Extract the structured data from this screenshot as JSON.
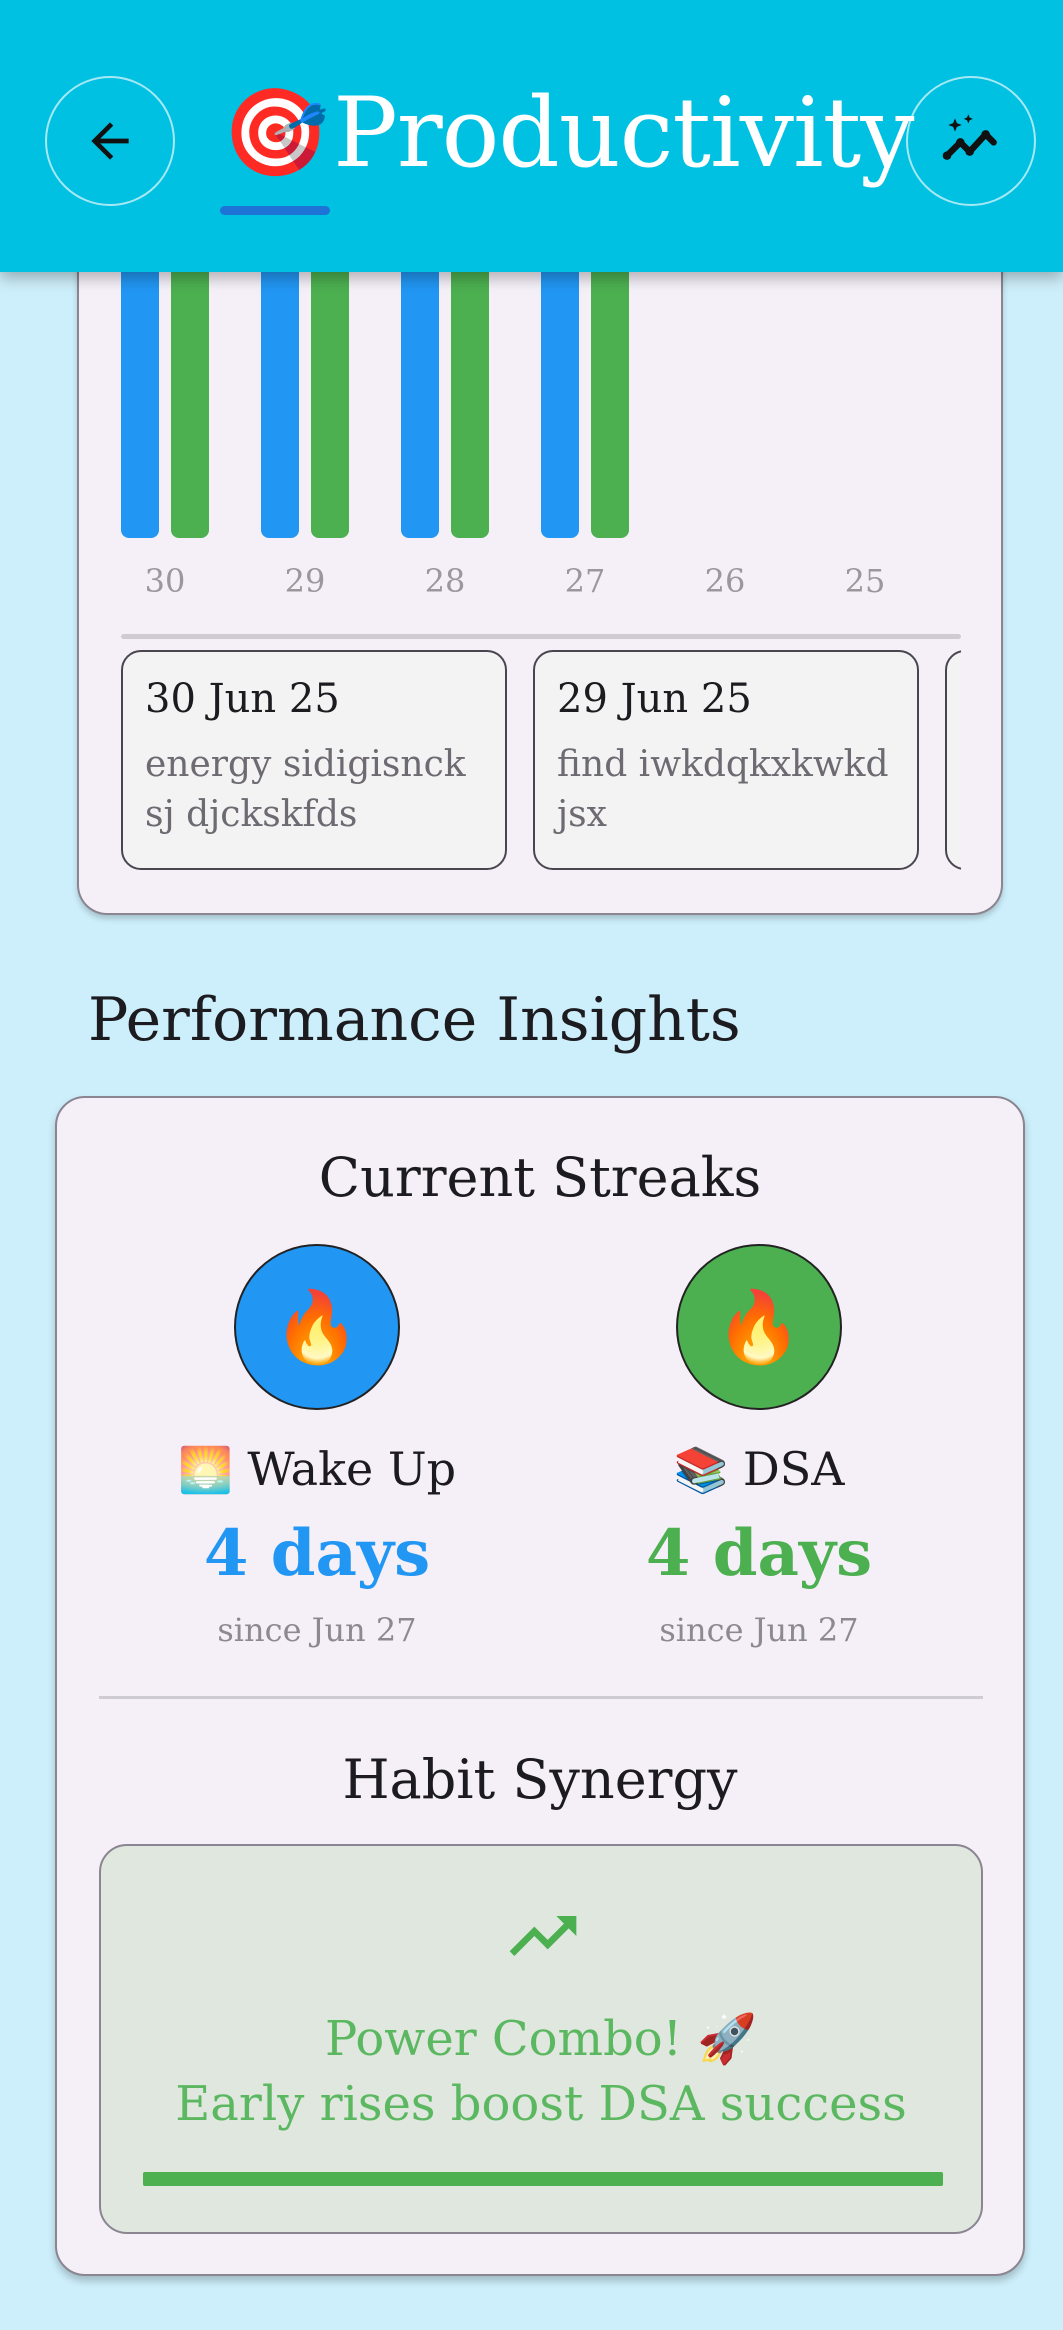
{
  "header": {
    "title_emoji": "🎯",
    "title": "Productivity",
    "back_icon": "arrow-left-icon",
    "insights_icon": "sparkle-chart-icon"
  },
  "chart": {
    "chart_data": {
      "type": "bar",
      "categories": [
        "30",
        "29",
        "28",
        "27",
        "26",
        "25"
      ],
      "series": [
        {
          "color": "#2196f3",
          "has_data": [
            true,
            true,
            true,
            true,
            false,
            false
          ]
        },
        {
          "color": "#4caf50",
          "has_data": [
            true,
            true,
            true,
            true,
            false,
            false
          ]
        }
      ]
    },
    "notes": [
      {
        "date": "30 Jun 25",
        "text": "energy sidigisncksj djckskfds"
      },
      {
        "date": "29 Jun 25",
        "text": "find iwkdqkxkwkdjsx"
      }
    ]
  },
  "insights": {
    "section_title": "Performance Insights",
    "streaks_heading": "Current Streaks",
    "streaks": [
      {
        "icon": "🔥",
        "habit_emoji": "🌅",
        "name": "Wake Up",
        "days": "4 days",
        "since": "since Jun 27",
        "color": "#2196f3"
      },
      {
        "icon": "🔥",
        "habit_emoji": "📚",
        "name": "DSA",
        "days": "4 days",
        "since": "since Jun 27",
        "color": "#4caf50"
      }
    ],
    "synergy_heading": "Habit Synergy",
    "synergy": {
      "icon": "trending-up-icon",
      "title": "Power Combo!",
      "title_emoji": "🚀",
      "subtitle": "Early rises boost DSA success",
      "progress": 1.0,
      "color": "#4caf50"
    }
  }
}
